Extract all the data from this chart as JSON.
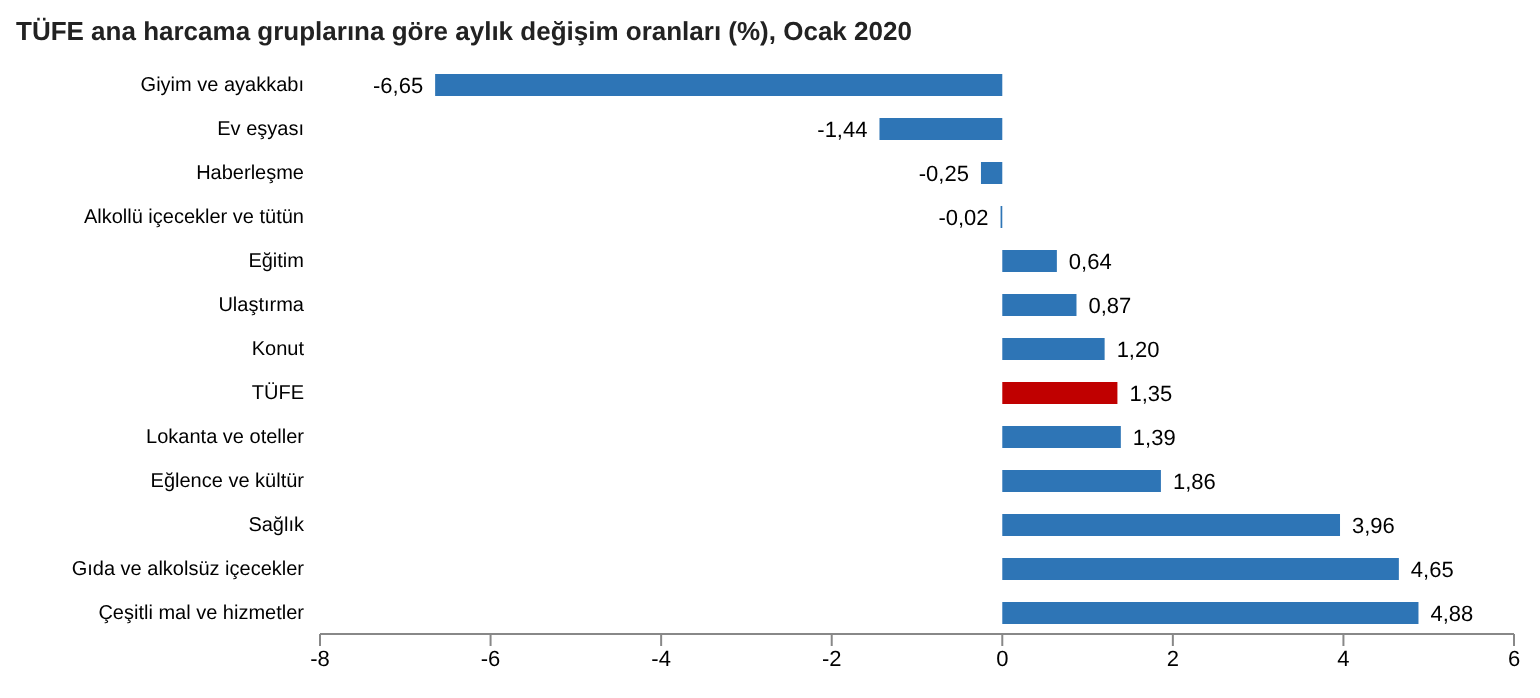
{
  "chart_data": {
    "type": "bar",
    "orientation": "horizontal",
    "title": "TÜFE ana harcama gruplarına göre aylık değişim oranları (%), Ocak 2020",
    "categories": [
      "Giyim ve ayakkabı",
      "Ev eşyası",
      "Haberleşme",
      "Alkollü içecekler ve tütün",
      "Eğitim",
      "Ulaştırma",
      "Konut",
      "TÜFE",
      "Lokanta ve oteller",
      "Eğlence ve kültür",
      "Sağlık",
      "Gıda ve alkolsüz içecekler",
      "Çeşitli mal ve hizmetler"
    ],
    "values": [
      -6.65,
      -1.44,
      -0.25,
      -0.02,
      0.64,
      0.87,
      1.2,
      1.35,
      1.39,
      1.86,
      3.96,
      4.65,
      4.88
    ],
    "colors": [
      "#2e75b6",
      "#2e75b6",
      "#2e75b6",
      "#2e75b6",
      "#2e75b6",
      "#2e75b6",
      "#2e75b6",
      "#c00000",
      "#2e75b6",
      "#2e75b6",
      "#2e75b6",
      "#2e75b6",
      "#2e75b6"
    ],
    "value_labels": [
      "-6,65",
      "-1,44",
      "-0,25",
      "-0,02",
      "0,64",
      "0,87",
      "1,20",
      "1,35",
      "1,39",
      "1,86",
      "3,96",
      "4,65",
      "4,88"
    ],
    "xlim": [
      -8,
      6
    ],
    "xticks": [
      -8,
      -6,
      -4,
      -2,
      0,
      2,
      4,
      6
    ],
    "grid": false
  }
}
